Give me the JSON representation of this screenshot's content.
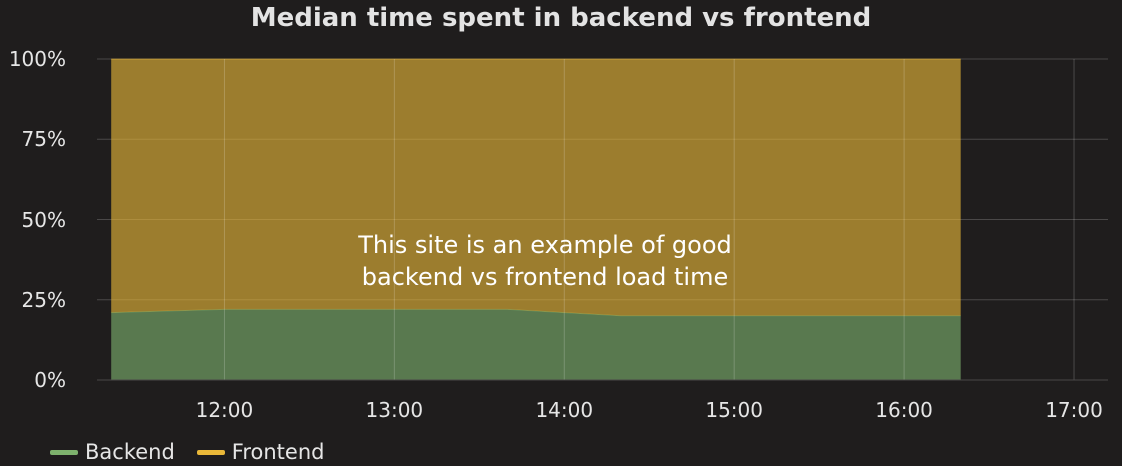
{
  "colors": {
    "background": "#1f1d1d",
    "grid": "#4a4848",
    "backend": "#7eb26d",
    "frontend": "#eab839"
  },
  "chart_data": {
    "type": "area",
    "stacked": true,
    "percent": true,
    "title": "Median time spent in backend vs frontend",
    "x": [
      "11:20",
      "11:40",
      "12:00",
      "12:20",
      "12:40",
      "13:00",
      "13:20",
      "13:40",
      "14:00",
      "14:20",
      "14:40",
      "15:00",
      "15:20",
      "15:40",
      "16:00",
      "16:20"
    ],
    "x_tick_labels": [
      "12:00",
      "13:00",
      "14:00",
      "15:00",
      "16:00",
      "17:00"
    ],
    "xlim": [
      "11:15",
      "17:12"
    ],
    "y_tick_labels": [
      "0%",
      "25%",
      "50%",
      "75%",
      "100%"
    ],
    "ylim": [
      0,
      100
    ],
    "series": [
      {
        "name": "Backend",
        "color": "#7eb26d",
        "values": [
          21,
          21.5,
          22,
          22,
          22,
          22,
          22,
          22,
          21,
          20,
          20,
          20,
          20,
          20,
          20,
          20
        ]
      },
      {
        "name": "Frontend",
        "color": "#eab839",
        "values": [
          79,
          78.5,
          78,
          78,
          78,
          78,
          78,
          78,
          79,
          80,
          80,
          80,
          80,
          80,
          80,
          80
        ]
      }
    ],
    "annotation": "This site is an example of good\nbackend vs frontend load time",
    "grid": true,
    "legend_position": "bottom-left"
  }
}
